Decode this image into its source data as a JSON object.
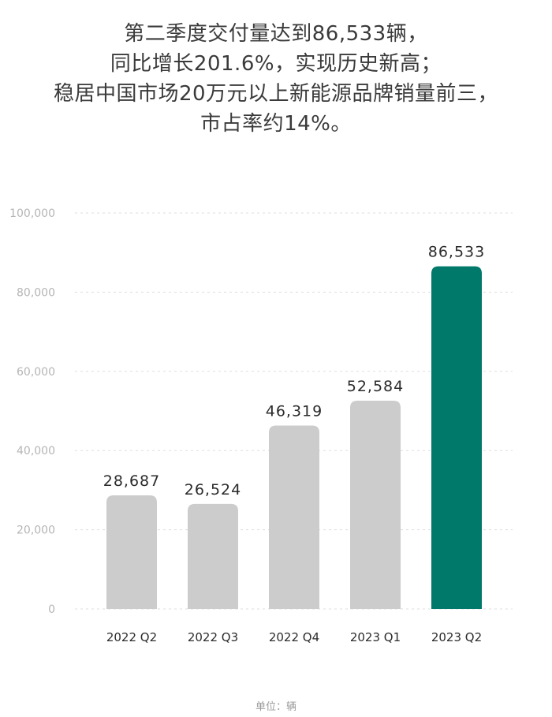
{
  "headline": {
    "lines": [
      "第二季度交付量达到86,533辆，",
      "同比增长201.6%，实现历史新高；",
      "稳居中国市场20万元以上新能源品牌销量前三，",
      "市占率约14%。"
    ]
  },
  "chart_data": {
    "type": "bar",
    "title": "",
    "xlabel": "",
    "ylabel": "",
    "categories": [
      "2022 Q2",
      "2022 Q3",
      "2022 Q4",
      "2023 Q1",
      "2023 Q2"
    ],
    "values": [
      28687,
      26524,
      46319,
      52584,
      86533
    ],
    "value_labels": [
      "28,687",
      "26,524",
      "46,319",
      "52,584",
      "86,533"
    ],
    "ylim": [
      0,
      100000
    ],
    "yticks": [
      0,
      20000,
      40000,
      60000,
      80000,
      100000
    ],
    "ytick_labels": [
      "0",
      "20,000",
      "40,000",
      "60,000",
      "80,000",
      "100,000"
    ],
    "grid": true,
    "highlight_index": 4,
    "colors": {
      "bar": "#cccccc",
      "highlight": "#00796b",
      "grid": "#dddddd"
    }
  },
  "unit_note": "单位：辆"
}
